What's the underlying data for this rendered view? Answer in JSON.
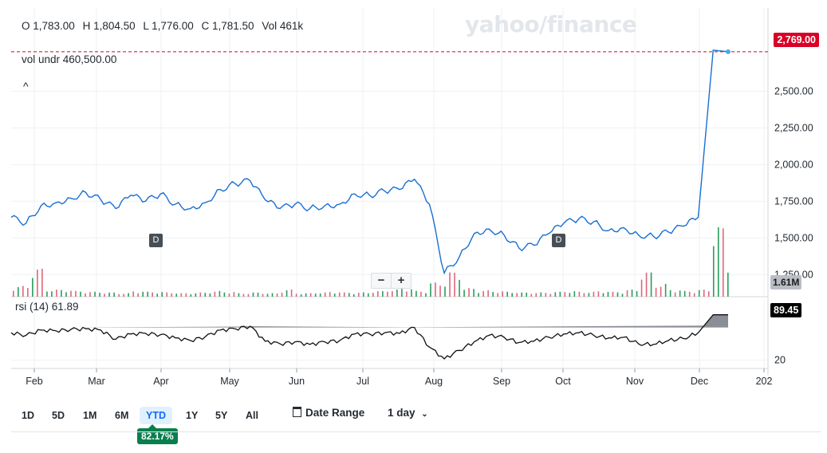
{
  "ohlc": {
    "open": "O 1,783.00",
    "high": "H 1,804.50",
    "low": "L 1,776.00",
    "close": "C 1,781.50",
    "vol": "Vol 461k"
  },
  "vol_undr": "vol undr  460,500.00",
  "collapse_glyph": "^",
  "rsi_label": "rsi (14)  61.89",
  "logo_text": "yahoo/finance",
  "last_price_tag": "2,769.00",
  "volume_tag": "1.61M",
  "rsi_tag": "89.45",
  "zoom": {
    "minus": "−",
    "plus": "+"
  },
  "dividend_marker": "D",
  "ranges": [
    "1D",
    "5D",
    "1M",
    "6M",
    "YTD",
    "1Y",
    "5Y",
    "All"
  ],
  "active_range": "YTD",
  "date_range_label": "Date Range",
  "interval_label": "1 day",
  "ytd_change": "82.17%",
  "colors": {
    "price_line": "#1a6fd1",
    "last_price": "#d80027",
    "vol_up": "#2a9d5c",
    "vol_down": "#e0667a",
    "rsi_line": "#111111",
    "ytd_badge": "#077f4d"
  },
  "chart_data": [
    {
      "type": "line",
      "name": "price",
      "x_labels": [
        "Feb",
        "Mar",
        "Apr",
        "May",
        "Jun",
        "Jul",
        "Aug",
        "Sep",
        "Oct",
        "Nov",
        "Dec",
        "202"
      ],
      "y_ticks": [
        "2,500.00",
        "2,250.00",
        "2,000.00",
        "1,750.00",
        "1,500.00",
        "1,250.00"
      ],
      "ylim": [
        1250,
        2850
      ],
      "x": [
        "Jan 15",
        "Jan 22",
        "Jan 29",
        "Feb 05",
        "Feb 12",
        "Feb 19",
        "Feb 26",
        "Mar 04",
        "Mar 11",
        "Mar 18",
        "Mar 25",
        "Apr 01",
        "Apr 08",
        "Apr 15",
        "Apr 22",
        "Apr 29",
        "May 06",
        "May 13",
        "May 20",
        "May 27",
        "Jun 03",
        "Jun 10",
        "Jun 17",
        "Jun 24",
        "Jul 01",
        "Jul 08",
        "Jul 15",
        "Jul 22",
        "Jul 29",
        "Aug 05",
        "Aug 12",
        "Aug 19",
        "Aug 26",
        "Sep 02",
        "Sep 09",
        "Sep 16",
        "Sep 23",
        "Sep 30",
        "Oct 07",
        "Oct 14",
        "Oct 21",
        "Oct 28",
        "Nov 04",
        "Nov 11",
        "Nov 18",
        "Nov 25",
        "Dec 02",
        "Dec 09",
        "Dec 13"
      ],
      "values": [
        1640,
        1600,
        1720,
        1740,
        1770,
        1810,
        1760,
        1700,
        1790,
        1750,
        1800,
        1730,
        1700,
        1740,
        1830,
        1870,
        1890,
        1760,
        1700,
        1730,
        1700,
        1720,
        1730,
        1800,
        1790,
        1820,
        1830,
        1900,
        1730,
        1260,
        1370,
        1530,
        1560,
        1520,
        1430,
        1450,
        1530,
        1600,
        1630,
        1610,
        1550,
        1570,
        1520,
        1510,
        1540,
        1580,
        1640,
        2780,
        2769
      ],
      "last_value": 2769.0
    },
    {
      "type": "bar",
      "name": "volume",
      "volume_tag": "1.61M",
      "values_relative": [
        0.15,
        0.4,
        0.1,
        0.1,
        0.08,
        0.07,
        0.06,
        0.05,
        0.08,
        0.07,
        0.06,
        0.05,
        0.06,
        0.08,
        0.07,
        0.05,
        0.06,
        0.05,
        0.1,
        0.05,
        0.06,
        0.07,
        0.06,
        0.06,
        0.08,
        0.1,
        0.12,
        0.08,
        0.2,
        0.35,
        0.12,
        0.09,
        0.08,
        0.07,
        0.06,
        0.06,
        0.07,
        0.08,
        0.07,
        0.08,
        0.07,
        0.1,
        0.35,
        0.18,
        0.1,
        0.08,
        0.1,
        1.0,
        0.5
      ]
    },
    {
      "type": "line",
      "name": "rsi (14)",
      "y_ticks": [
        "20"
      ],
      "ylim": [
        0,
        100
      ],
      "values": [
        62,
        58,
        66,
        65,
        67,
        68,
        66,
        52,
        60,
        61,
        59,
        54,
        50,
        56,
        66,
        68,
        72,
        49,
        45,
        48,
        44,
        48,
        50,
        60,
        60,
        62,
        61,
        70,
        40,
        22,
        35,
        48,
        58,
        55,
        47,
        49,
        55,
        60,
        62,
        58,
        54,
        55,
        45,
        44,
        50,
        53,
        62,
        89.45,
        89.45
      ],
      "last_value": 89.45
    }
  ]
}
